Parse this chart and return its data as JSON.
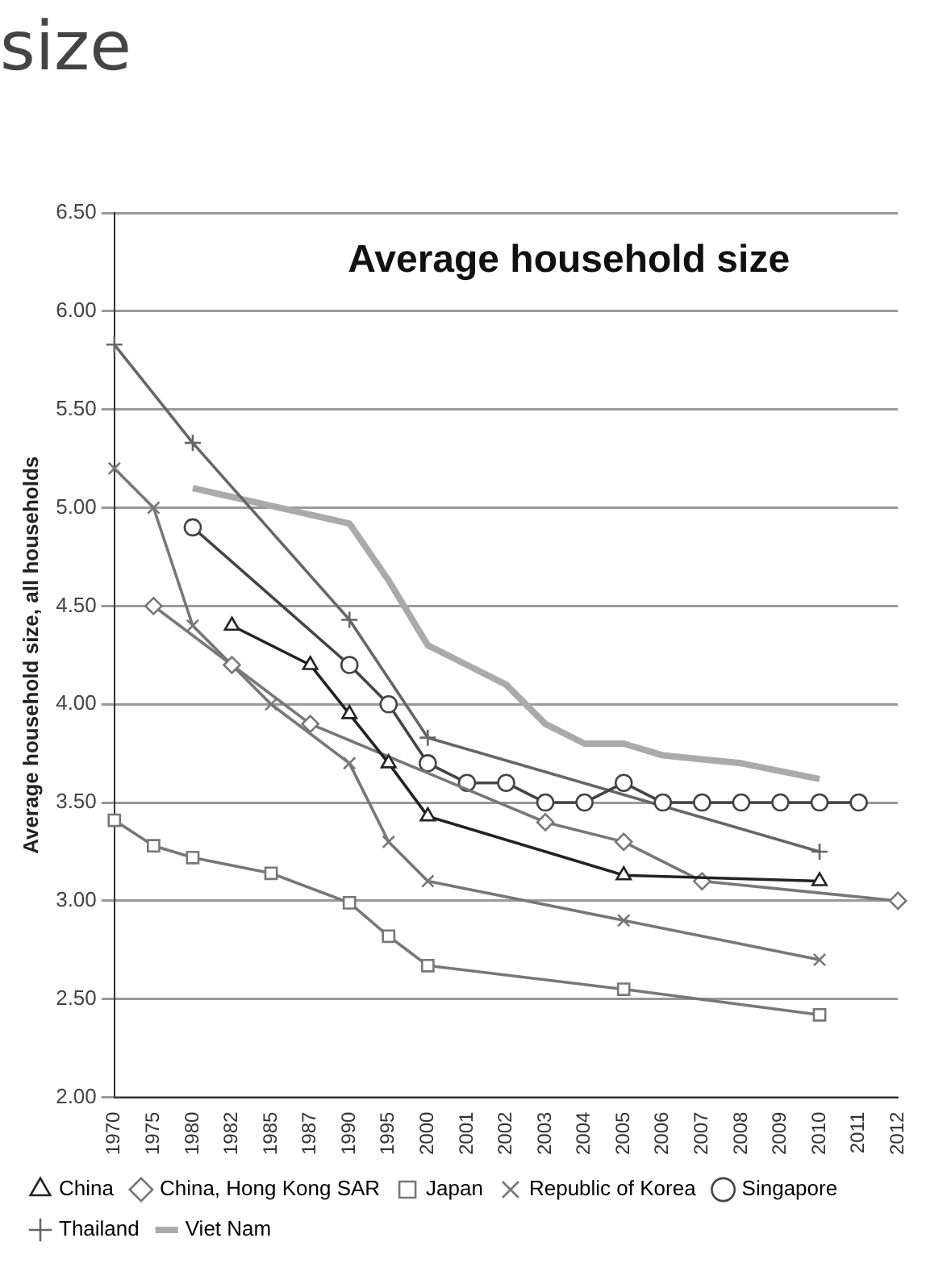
{
  "chart_data": {
    "type": "line",
    "title": "Average household size",
    "ylabel": "Average household size, all households",
    "annotations": [
      "size"
    ],
    "categories": [
      "1970",
      "1975",
      "1980",
      "1982",
      "1985",
      "1987",
      "1990",
      "1995",
      "2000",
      "2001",
      "2002",
      "2003",
      "2004",
      "2005",
      "2006",
      "2007",
      "2008",
      "2009",
      "2010",
      "2011",
      "2012"
    ],
    "series": [
      {
        "name": "China",
        "color": "#222222",
        "marker": "triangle",
        "values": [
          null,
          null,
          null,
          4.4,
          null,
          4.2,
          3.95,
          3.7,
          3.43,
          null,
          null,
          null,
          null,
          3.13,
          null,
          null,
          null,
          null,
          3.1,
          null,
          null
        ]
      },
      {
        "name": "China, Hong Kong SAR",
        "color": "#777777",
        "marker": "diamond",
        "values": [
          null,
          4.5,
          null,
          4.2,
          null,
          3.9,
          null,
          null,
          null,
          null,
          null,
          3.4,
          null,
          3.3,
          null,
          3.1,
          null,
          null,
          null,
          null,
          3.0
        ]
      },
      {
        "name": "Japan",
        "color": "#777777",
        "marker": "square",
        "values": [
          3.41,
          3.28,
          3.22,
          null,
          3.14,
          null,
          2.99,
          2.82,
          2.67,
          null,
          null,
          null,
          null,
          2.55,
          null,
          null,
          null,
          null,
          2.42,
          null,
          null
        ]
      },
      {
        "name": "Republic of Korea",
        "color": "#777777",
        "marker": "x",
        "values": [
          5.2,
          5.0,
          4.4,
          null,
          4.0,
          null,
          3.7,
          3.3,
          3.1,
          null,
          null,
          null,
          null,
          2.9,
          null,
          null,
          null,
          null,
          2.7,
          null,
          null
        ]
      },
      {
        "name": "Singapore",
        "color": "#444444",
        "marker": "circle",
        "values": [
          null,
          null,
          4.9,
          null,
          null,
          null,
          4.2,
          4.0,
          3.7,
          3.6,
          3.6,
          3.5,
          3.5,
          3.6,
          3.5,
          3.5,
          3.5,
          3.5,
          3.5,
          3.5,
          null
        ]
      },
      {
        "name": "Thailand",
        "color": "#666666",
        "marker": "cross",
        "values": [
          5.83,
          null,
          5.33,
          null,
          null,
          null,
          4.43,
          null,
          3.83,
          null,
          null,
          null,
          null,
          null,
          null,
          null,
          null,
          null,
          3.25,
          null,
          null
        ]
      },
      {
        "name": "Viet Nam",
        "color": "#aaaaaa",
        "marker": "none",
        "values": [
          null,
          null,
          5.1,
          null,
          null,
          null,
          4.92,
          4.63,
          4.3,
          4.2,
          4.1,
          3.9,
          3.8,
          3.8,
          3.74,
          3.72,
          3.7,
          3.66,
          3.62,
          null,
          null
        ]
      }
    ],
    "ylim": [
      2.0,
      6.5
    ],
    "yticks": [
      {
        "value": 2.0,
        "label": "2.00"
      },
      {
        "value": 2.5,
        "label": "2.50"
      },
      {
        "value": 3.0,
        "label": "3.00"
      },
      {
        "value": 3.5,
        "label": "3.50"
      },
      {
        "value": 4.0,
        "label": "4.00"
      },
      {
        "value": 4.5,
        "label": "4.50"
      },
      {
        "value": 5.0,
        "label": "5.00"
      },
      {
        "value": 5.5,
        "label": "5.50"
      },
      {
        "value": 6.0,
        "label": "6.00"
      },
      {
        "value": 6.5,
        "label": "6.50"
      }
    ],
    "grid": "y",
    "legend": "bottom",
    "line_style": "solid"
  }
}
